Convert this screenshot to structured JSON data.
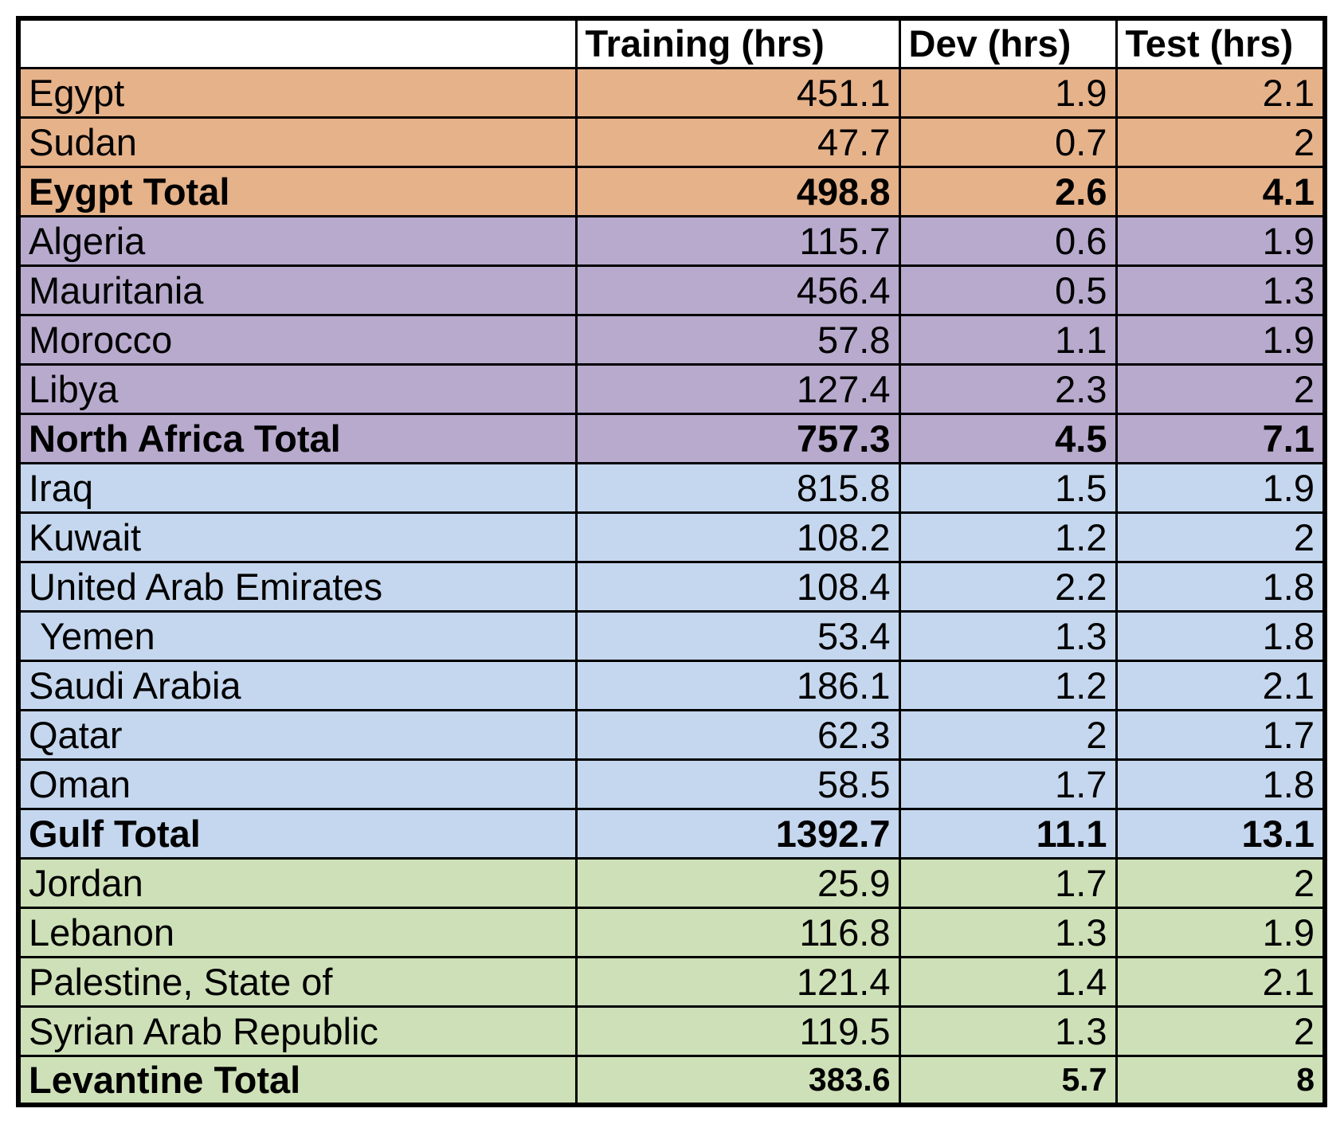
{
  "chart_data": {
    "type": "table",
    "columns": [
      "",
      "Training (hrs)",
      "Dev (hrs)",
      "Test (hrs)"
    ],
    "groups": [
      {
        "color": "#e6b28a",
        "rows": [
          {
            "label": "Egypt",
            "training": "451.1",
            "dev": "1.9",
            "test": "2.1"
          },
          {
            "label": "Sudan",
            "training": "47.7",
            "dev": "0.7",
            "test": "2"
          }
        ],
        "total": {
          "label": "Eygpt Total",
          "training": "498.8",
          "dev": "2.6",
          "test": "4.1"
        }
      },
      {
        "color": "#b7aacd",
        "rows": [
          {
            "label": "Algeria",
            "training": "115.7",
            "dev": "0.6",
            "test": "1.9"
          },
          {
            "label": "Mauritania",
            "training": "456.4",
            "dev": "0.5",
            "test": "1.3"
          },
          {
            "label": "Morocco",
            "training": "57.8",
            "dev": "1.1",
            "test": "1.9"
          },
          {
            "label": "Libya",
            "training": "127.4",
            "dev": "2.3",
            "test": "2"
          }
        ],
        "total": {
          "label": "North Africa Total",
          "training": "757.3",
          "dev": "4.5",
          "test": "7.1"
        }
      },
      {
        "color": "#c5d7ee",
        "rows": [
          {
            "label": "Iraq",
            "training": "815.8",
            "dev": "1.5",
            "test": "1.9"
          },
          {
            "label": "Kuwait",
            "training": "108.2",
            "dev": "1.2",
            "test": "2"
          },
          {
            "label": "United Arab Emirates",
            "training": "108.4",
            "dev": "2.2",
            "test": "1.8"
          },
          {
            "label": "Yemen",
            "training": "53.4",
            "dev": "1.3",
            "test": "1.8"
          },
          {
            "label": "Saudi Arabia",
            "training": "186.1",
            "dev": "1.2",
            "test": "2.1"
          },
          {
            "label": "Qatar",
            "training": "62.3",
            "dev": "2",
            "test": "1.7"
          },
          {
            "label": "Oman",
            "training": "58.5",
            "dev": "1.7",
            "test": "1.8"
          }
        ],
        "total": {
          "label": "Gulf Total",
          "training": "1392.7",
          "dev": "11.1",
          "test": "13.1"
        }
      },
      {
        "color": "#cee0b7",
        "rows": [
          {
            "label": "Jordan",
            "training": "25.9",
            "dev": "1.7",
            "test": "2"
          },
          {
            "label": "Lebanon",
            "training": "116.8",
            "dev": "1.3",
            "test": "1.9"
          },
          {
            "label": "Palestine, State of",
            "training": "121.4",
            "dev": "1.4",
            "test": "2.1"
          },
          {
            "label": "Syrian Arab Republic",
            "training": "119.5",
            "dev": "1.3",
            "test": "2"
          }
        ],
        "total": {
          "label": "Levantine Total",
          "training": "383.6",
          "dev": "5.7",
          "test": "8"
        }
      }
    ]
  }
}
